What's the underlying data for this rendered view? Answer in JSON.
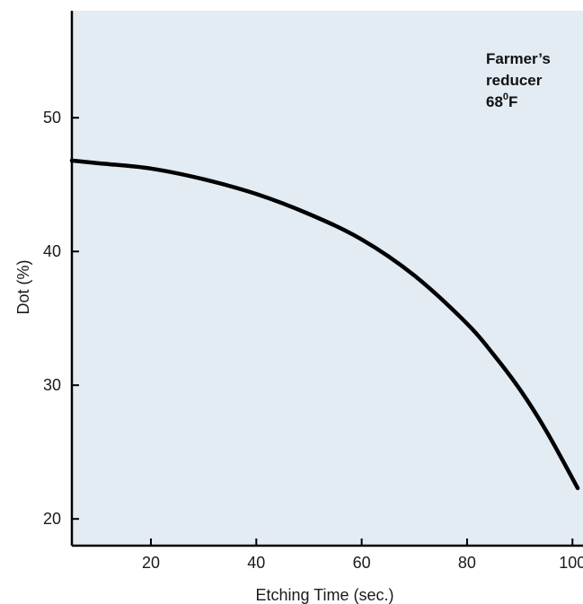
{
  "chart_data": {
    "type": "line",
    "title": "",
    "xlabel": "Etching Time (sec.)",
    "ylabel": "Dot (%)",
    "xlim": [
      5,
      102
    ],
    "ylim": [
      18,
      58
    ],
    "x_ticks": [
      20,
      40,
      60,
      80,
      100
    ],
    "y_ticks": [
      20,
      30,
      40,
      50
    ],
    "annotation": {
      "lines": [
        "Farmer’s",
        "reducer",
        "68"
      ],
      "superscript": "0",
      "unit": "F"
    },
    "grid": false,
    "legend": "none",
    "series": [
      {
        "x": [
          5,
          10,
          20,
          30,
          40,
          50,
          60,
          70,
          80,
          85,
          90,
          95,
          101
        ],
        "y": [
          46.8,
          46.6,
          46.2,
          45.4,
          44.3,
          42.8,
          40.9,
          38.2,
          34.6,
          32.3,
          29.7,
          26.6,
          22.3
        ],
        "color": "#000000"
      }
    ],
    "colors": {
      "plot_background": "#e3ebf3",
      "axis": "#000000",
      "line": "#000000"
    }
  }
}
